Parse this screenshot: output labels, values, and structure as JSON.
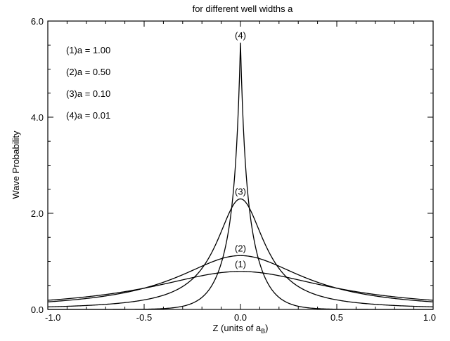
{
  "chart_data": {
    "type": "line",
    "title": "for different well widths a",
    "xlabel": "Z (units of a",
    "xlabel_sub": "B",
    "xlabel_close": ")",
    "ylabel": "Wave Probability",
    "xlim": [
      -1.0,
      1.0
    ],
    "ylim": [
      0.0,
      6.0
    ],
    "x_ticks": [
      -1.0,
      -0.5,
      0.0,
      0.5,
      1.0
    ],
    "x_tick_labels": [
      "-1.0",
      "-0.5",
      "0.0",
      "0.5",
      "1.0"
    ],
    "x_minor_ticks": [
      -0.9,
      -0.8,
      -0.7,
      -0.6,
      -0.4,
      -0.3,
      -0.2,
      -0.1,
      0.1,
      0.2,
      0.3,
      0.4,
      0.6,
      0.7,
      0.8,
      0.9
    ],
    "y_ticks": [
      0.0,
      2.0,
      4.0,
      6.0
    ],
    "y_tick_labels": [
      "0.0",
      "2.0",
      "4.0",
      "6.0"
    ],
    "y_minor_ticks": [
      0.5,
      1.0,
      1.5,
      2.5,
      3.0,
      3.5,
      4.5,
      5.0,
      5.5
    ],
    "grid": false,
    "legend_position": "top-left",
    "legend": [
      "(1)a = 1.00",
      "(2)a = 0.50",
      "(3)a = 0.10",
      "(4)a = 0.01"
    ],
    "series": [
      {
        "label": "(1)",
        "a": 1.0,
        "x": [
          -1.0,
          -0.75,
          -0.5,
          -0.25,
          0.0,
          0.25,
          0.5,
          0.75,
          1.0
        ],
        "y": [
          0.13,
          0.25,
          0.44,
          0.66,
          0.79,
          0.66,
          0.44,
          0.25,
          0.13
        ]
      },
      {
        "label": "(2)",
        "a": 0.5,
        "x": [
          -1.0,
          -0.75,
          -0.5,
          -0.25,
          0.0,
          0.25,
          0.5,
          0.75,
          1.0
        ],
        "y": [
          0.07,
          0.17,
          0.39,
          0.81,
          1.12,
          0.81,
          0.39,
          0.17,
          0.07
        ]
      },
      {
        "label": "(3)",
        "a": 0.1,
        "x": [
          -1.0,
          -0.75,
          -0.5,
          -0.25,
          0.0,
          0.25,
          0.5,
          0.75,
          1.0
        ],
        "y": [
          0.01,
          0.04,
          0.14,
          0.63,
          2.3,
          0.63,
          0.14,
          0.04,
          0.01
        ]
      },
      {
        "label": "(4)",
        "a": 0.01,
        "x": [
          -0.5,
          -0.4,
          -0.3,
          -0.2,
          -0.1,
          -0.05,
          0.0,
          0.05,
          0.1,
          0.2,
          0.3,
          0.4,
          0.5
        ],
        "y": [
          0.0,
          0.02,
          0.08,
          0.24,
          1.26,
          2.92,
          5.55,
          2.92,
          1.26,
          0.24,
          0.08,
          0.02,
          0.0
        ]
      }
    ]
  }
}
